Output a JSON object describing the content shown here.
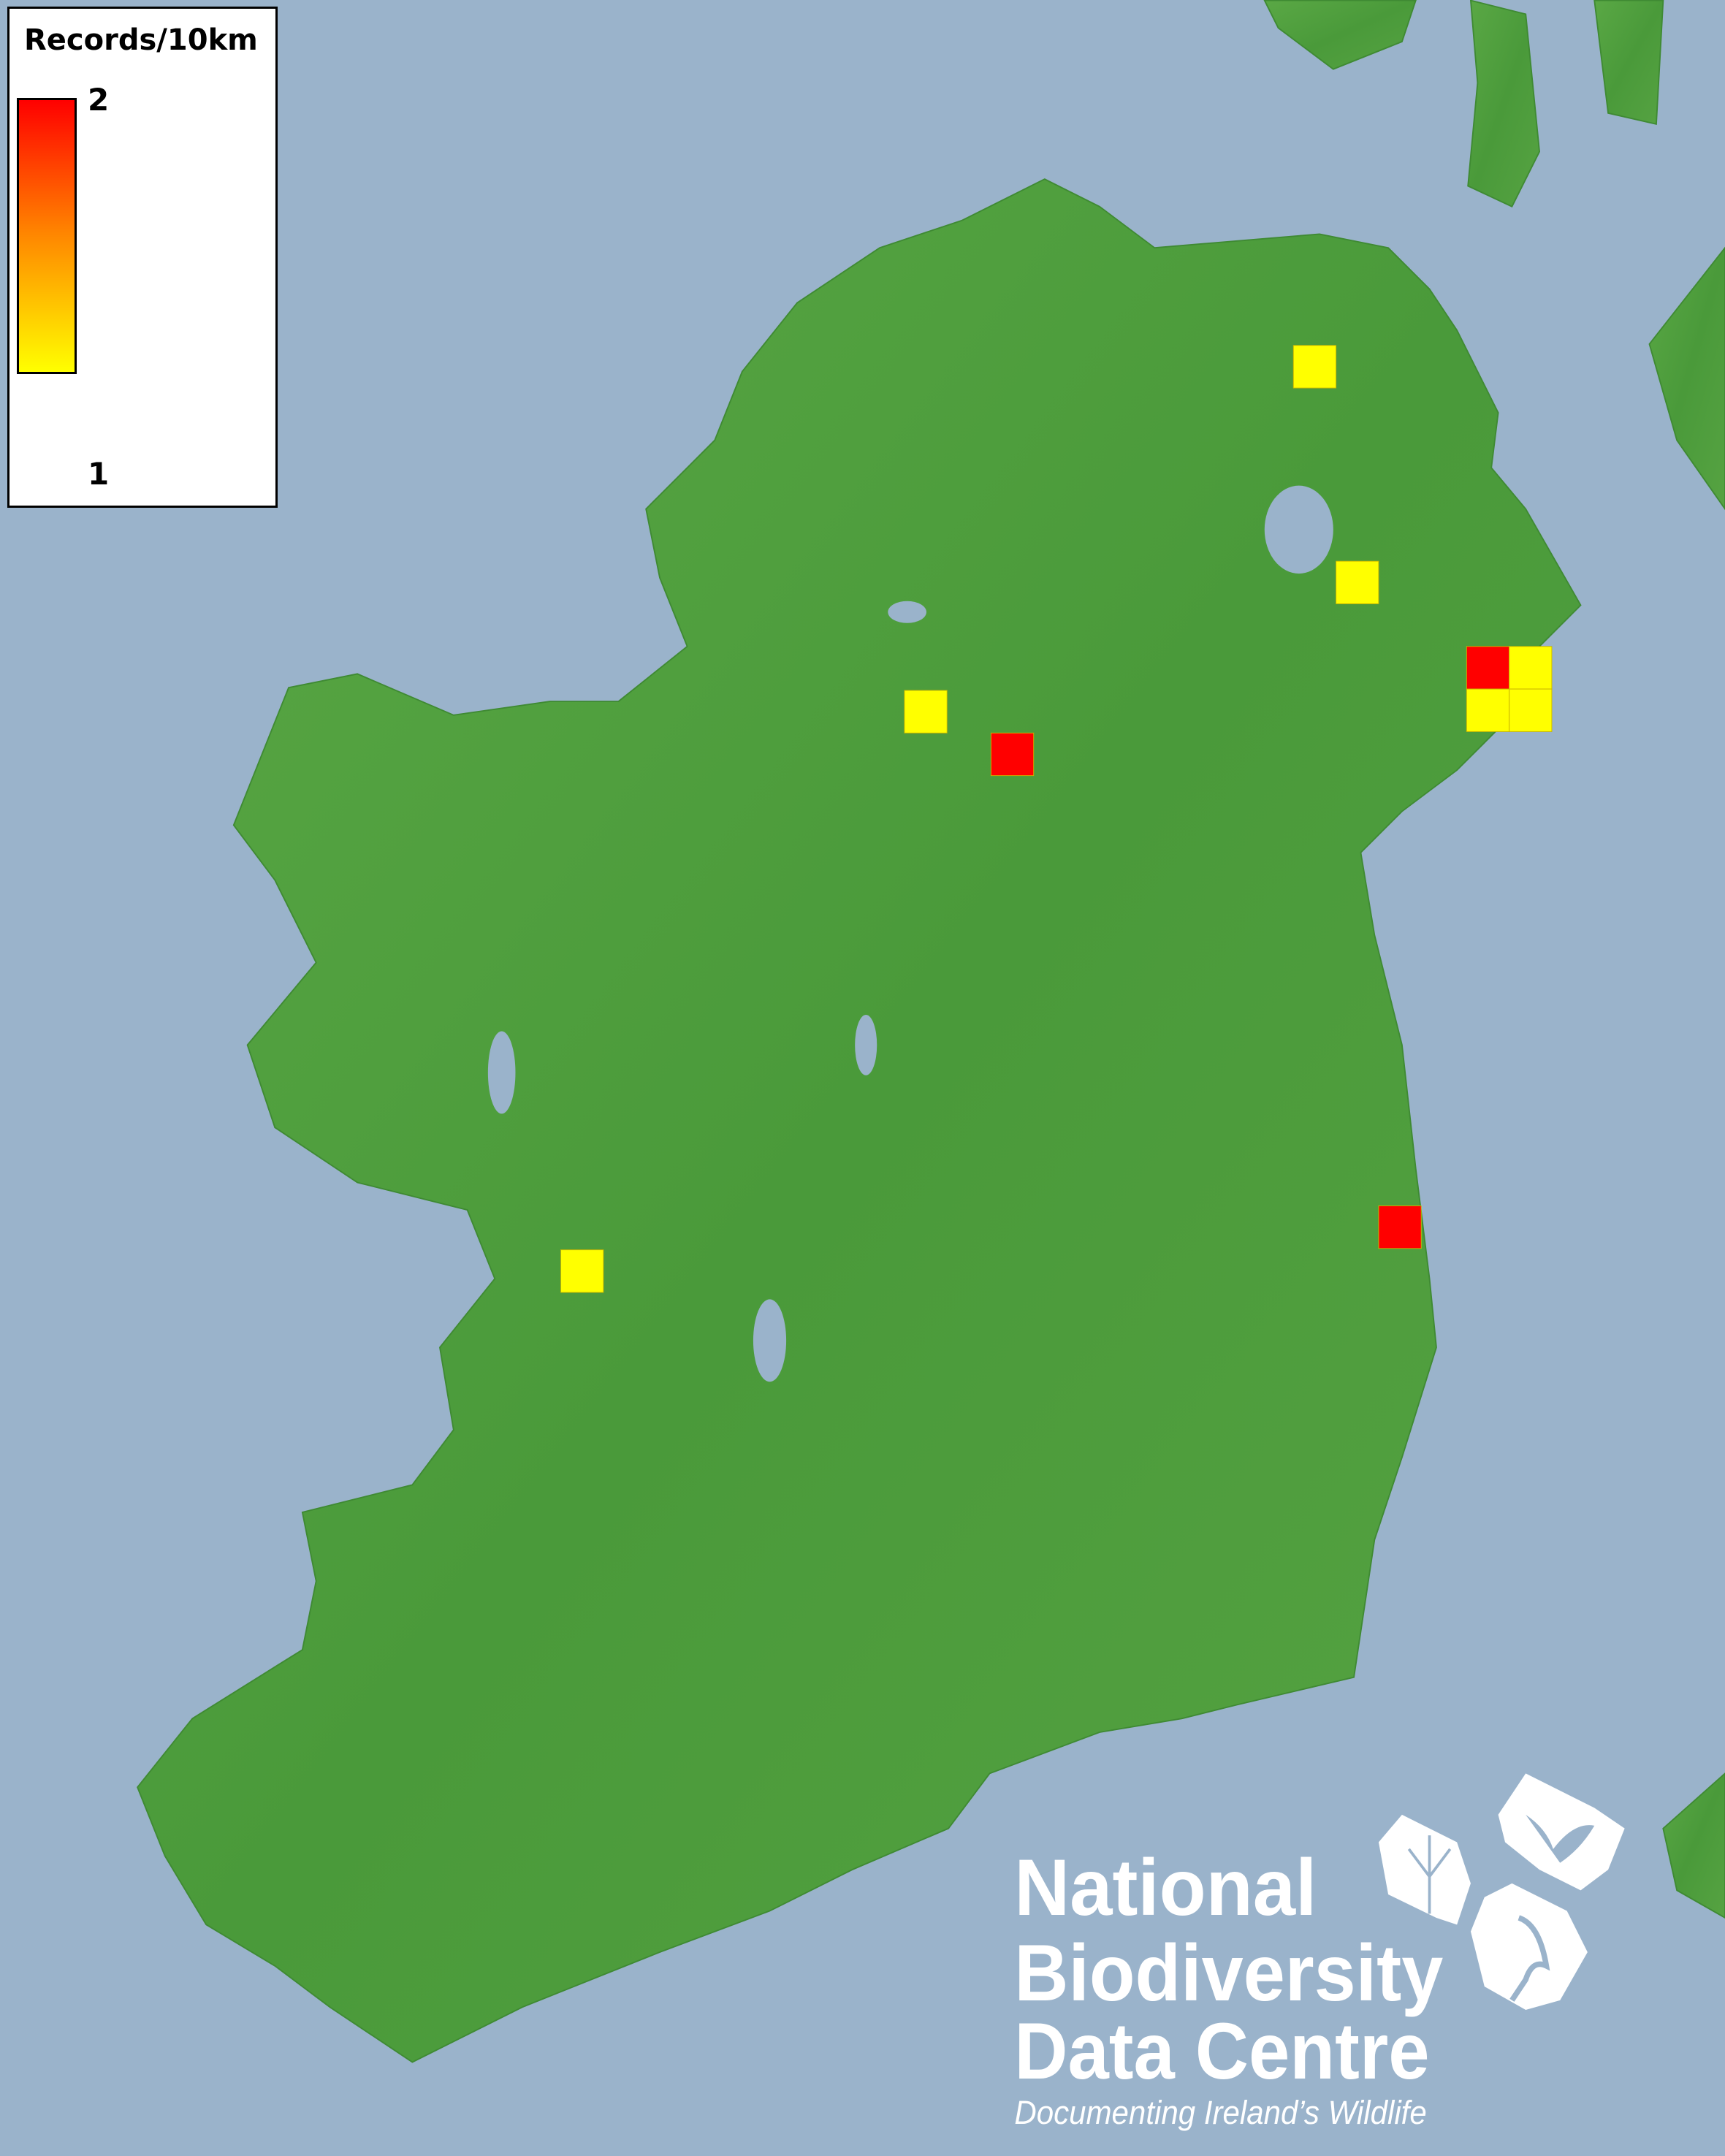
{
  "legend": {
    "title": "Records/10km",
    "max_label": "2",
    "min_label": "1",
    "max_color": "#ff0000",
    "min_color": "#ffff00"
  },
  "colors": {
    "sea": "#9ab3cb",
    "land": "#4c9e3c",
    "record_1": "#ffff00",
    "record_2": "#ff0000"
  },
  "squares": [
    {
      "records": 1
    },
    {
      "records": 1
    },
    {
      "records": 2
    },
    {
      "records": 1
    },
    {
      "records": 1
    },
    {
      "records": 1
    },
    {
      "records": 1
    },
    {
      "records": 2
    },
    {
      "records": 2
    },
    {
      "records": 1
    }
  ],
  "logo": {
    "line1": "National",
    "line2": "Biodiversity",
    "line3": "Data Centre",
    "tagline": "Documenting Ireland’s Wildlife",
    "icons": [
      "tree-icon",
      "butterfly-icon",
      "seahorse-icon"
    ]
  }
}
